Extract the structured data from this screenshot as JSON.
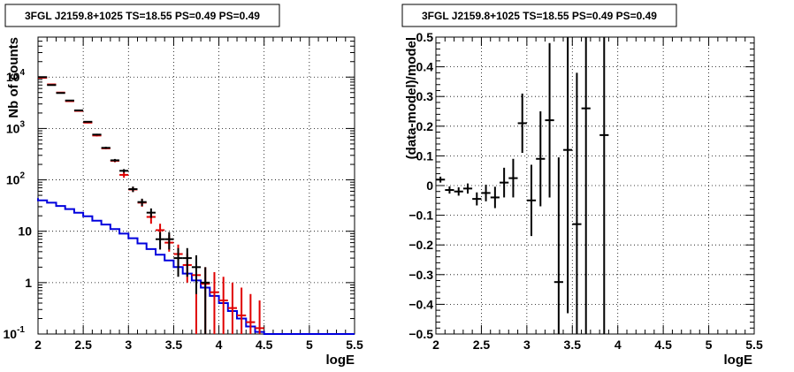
{
  "chart_data": [
    {
      "type": "scatter",
      "title": "3FGL J2159.8+1025 TS=18.55 PS=0.49 PS=0.49",
      "xlabel": "logE",
      "ylabel": "Nb of counts",
      "xlim": [
        2,
        5.5
      ],
      "ylim": [
        0.1,
        60000
      ],
      "yscale": "log",
      "grid": true,
      "x_ticks": [
        "2",
        "2.5",
        "3",
        "3.5",
        "4",
        "4.5",
        "5",
        "5.5"
      ],
      "y_ticks": [
        {
          "base": "10",
          "exp": "-1",
          "value": 0.1
        },
        {
          "base": "1",
          "exp": "",
          "value": 1
        },
        {
          "base": "10",
          "exp": "",
          "value": 10
        },
        {
          "base": "10",
          "exp": "2",
          "value": 100
        },
        {
          "base": "10",
          "exp": "3",
          "value": 1000
        },
        {
          "base": "10",
          "exp": "4",
          "value": 10000
        }
      ],
      "colors": {
        "data": "#000000",
        "model": "#e00000",
        "source": "#0000dd"
      },
      "data_points": [
        {
          "x": 2.05,
          "y": 10000,
          "err": 100
        },
        {
          "x": 2.15,
          "y": 7000,
          "err": 84
        },
        {
          "x": 2.25,
          "y": 4900,
          "err": 70
        },
        {
          "x": 2.35,
          "y": 3500,
          "err": 59
        },
        {
          "x": 2.45,
          "y": 2250,
          "err": 47
        },
        {
          "x": 2.55,
          "y": 1350,
          "err": 37
        },
        {
          "x": 2.65,
          "y": 760,
          "err": 28
        },
        {
          "x": 2.75,
          "y": 420,
          "err": 20
        },
        {
          "x": 2.85,
          "y": 240,
          "err": 15
        },
        {
          "x": 2.95,
          "y": 150,
          "err": 12
        },
        {
          "x": 3.05,
          "y": 66,
          "err": 8
        },
        {
          "x": 3.15,
          "y": 37,
          "err": 6
        },
        {
          "x": 3.25,
          "y": 23,
          "err": 4.8
        },
        {
          "x": 3.35,
          "y": 7,
          "err": 2.6
        },
        {
          "x": 3.45,
          "y": 7,
          "err": 2.6
        },
        {
          "x": 3.55,
          "y": 3,
          "err": 1.7
        },
        {
          "x": 3.65,
          "y": 3,
          "err": 1.7
        },
        {
          "x": 3.75,
          "y": 2,
          "err": 1.4
        },
        {
          "x": 3.85,
          "y": 1,
          "err": 1
        }
      ],
      "model_points": [
        {
          "x": 2.05,
          "y": 9700,
          "lo": 9600,
          "hi": 9800
        },
        {
          "x": 2.15,
          "y": 7200,
          "lo": 7100,
          "hi": 7300
        },
        {
          "x": 2.25,
          "y": 5000,
          "lo": 4900,
          "hi": 5100
        },
        {
          "x": 2.35,
          "y": 3400,
          "lo": 3340,
          "hi": 3460
        },
        {
          "x": 2.45,
          "y": 2200,
          "lo": 2150,
          "hi": 2250
        },
        {
          "x": 2.55,
          "y": 1300,
          "lo": 1260,
          "hi": 1340
        },
        {
          "x": 2.65,
          "y": 730,
          "lo": 700,
          "hi": 760
        },
        {
          "x": 2.75,
          "y": 410,
          "lo": 395,
          "hi": 425
        },
        {
          "x": 2.85,
          "y": 235,
          "lo": 220,
          "hi": 250
        },
        {
          "x": 2.95,
          "y": 125,
          "lo": 110,
          "hi": 140
        },
        {
          "x": 3.05,
          "y": 65,
          "lo": 58,
          "hi": 73
        },
        {
          "x": 3.15,
          "y": 36,
          "lo": 30,
          "hi": 42
        },
        {
          "x": 3.25,
          "y": 19,
          "lo": 14,
          "hi": 24
        },
        {
          "x": 3.35,
          "y": 10.5,
          "lo": 7.5,
          "hi": 14
        },
        {
          "x": 3.45,
          "y": 6,
          "lo": 4,
          "hi": 8.5
        },
        {
          "x": 3.55,
          "y": 3.6,
          "lo": 2,
          "hi": 5.5
        },
        {
          "x": 3.65,
          "y": 2.2,
          "lo": 1,
          "hi": 3.7
        },
        {
          "x": 3.75,
          "y": 1.4,
          "lo": 0.1,
          "hi": 2.6
        },
        {
          "x": 3.85,
          "y": 0.95,
          "lo": 0.1,
          "hi": 2
        },
        {
          "x": 3.95,
          "y": 0.65,
          "lo": 0.1,
          "hi": 1.6
        },
        {
          "x": 4.05,
          "y": 0.45,
          "lo": 0.1,
          "hi": 1.3
        },
        {
          "x": 4.15,
          "y": 0.32,
          "lo": 0.1,
          "hi": 1
        },
        {
          "x": 4.25,
          "y": 0.23,
          "lo": 0.1,
          "hi": 0.8
        },
        {
          "x": 4.35,
          "y": 0.17,
          "lo": 0.1,
          "hi": 0.6
        },
        {
          "x": 4.45,
          "y": 0.13,
          "lo": 0.1,
          "hi": 0.45
        }
      ],
      "source_edges": [
        1.9,
        2.0,
        2.1,
        2.2,
        2.3,
        2.4,
        2.5,
        2.6,
        2.7,
        2.8,
        2.9,
        3.0,
        3.1,
        3.2,
        3.3,
        3.4,
        3.5,
        3.6,
        3.7,
        3.8,
        3.9,
        4.0,
        4.1,
        4.2,
        4.3,
        4.4,
        4.5,
        5.5
      ],
      "source_values": [
        44,
        40,
        36,
        31,
        27,
        23,
        19.5,
        16,
        13.5,
        11,
        9,
        7.3,
        5.8,
        4.5,
        3.5,
        2.7,
        2.0,
        1.5,
        1.1,
        0.8,
        0.55,
        0.4,
        0.28,
        0.2,
        0.14,
        0.11,
        0.1
      ]
    },
    {
      "type": "scatter",
      "title": "3FGL J2159.8+1025 TS=18.55 PS=0.49 PS=0.49",
      "xlabel": "logE",
      "ylabel": "(data-model)/model",
      "xlim": [
        2,
        5.5
      ],
      "ylim": [
        -0.5,
        0.5
      ],
      "grid": true,
      "x_ticks": [
        "2",
        "2.5",
        "3",
        "3.5",
        "4",
        "4.5",
        "5",
        "5.5"
      ],
      "y_ticks": [
        "−0.5",
        "−0.4",
        "−0.3",
        "−0.2",
        "−0.1",
        "0",
        "0.1",
        "0.2",
        "0.3",
        "0.4",
        "0.5"
      ],
      "points": [
        {
          "x": 2.05,
          "y": 0.02,
          "err": 0.01
        },
        {
          "x": 2.15,
          "y": -0.015,
          "err": 0.012
        },
        {
          "x": 2.25,
          "y": -0.02,
          "err": 0.014
        },
        {
          "x": 2.35,
          "y": -0.01,
          "err": 0.017
        },
        {
          "x": 2.45,
          "y": -0.045,
          "err": 0.022
        },
        {
          "x": 2.55,
          "y": -0.025,
          "err": 0.028
        },
        {
          "x": 2.65,
          "y": -0.04,
          "err": 0.036
        },
        {
          "x": 2.75,
          "y": 0.01,
          "err": 0.05
        },
        {
          "x": 2.85,
          "y": 0.025,
          "err": 0.065
        },
        {
          "x": 2.95,
          "y": 0.21,
          "err": 0.1
        },
        {
          "x": 3.05,
          "y": -0.05,
          "err": 0.12
        },
        {
          "x": 3.15,
          "y": 0.09,
          "err": 0.16
        },
        {
          "x": 3.25,
          "y": 0.22,
          "err": 0.26
        },
        {
          "x": 3.35,
          "y": -0.325,
          "err": 0.42
        },
        {
          "x": 3.45,
          "y": 0.12,
          "err": 0.55
        },
        {
          "x": 3.55,
          "y": -0.13,
          "err": 0.51
        },
        {
          "x": 3.65,
          "y": 0.26,
          "err": 0.8
        },
        {
          "x": 3.85,
          "y": 0.17,
          "err": 1.0
        }
      ]
    }
  ]
}
